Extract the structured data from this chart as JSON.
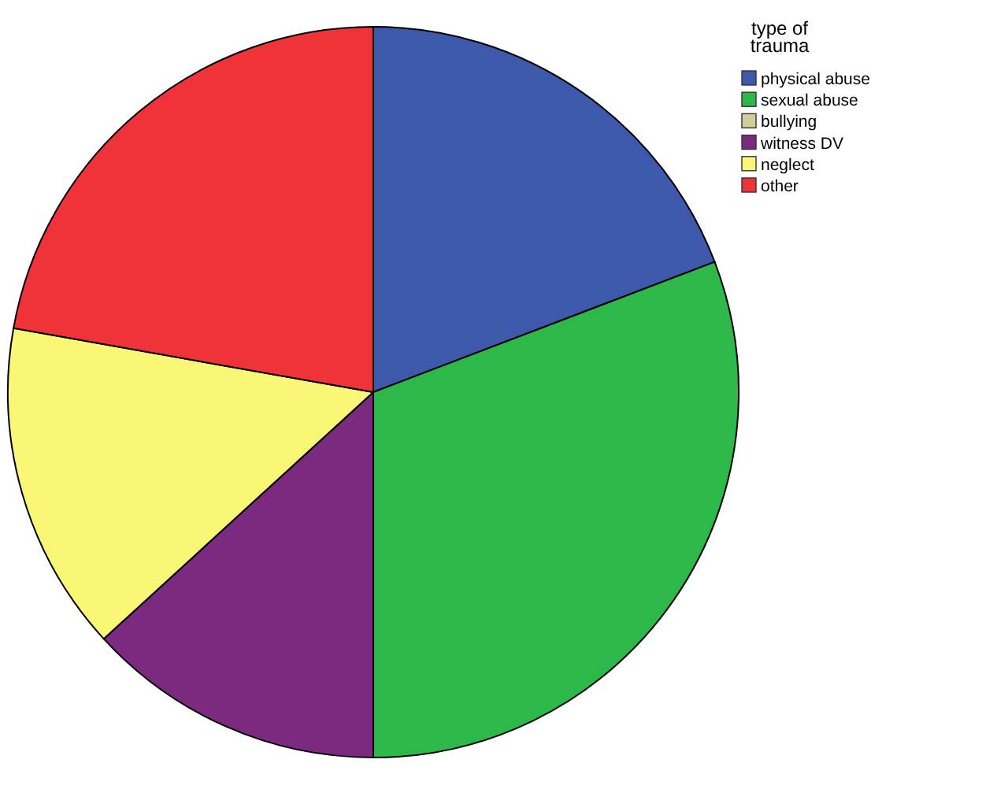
{
  "chart_data": {
    "type": "pie",
    "legend_title": "type of\ntrauma",
    "legend": "top right",
    "categories": [
      "physical abuse",
      "sexual abuse",
      "bullying",
      "witness DV",
      "neglect",
      "other"
    ],
    "values": [
      19.2,
      30.8,
      0,
      13.2,
      14.6,
      22.2
    ],
    "colors": [
      "#3e58ac",
      "#2db84a",
      "#d4cc9a",
      "#7b2a80",
      "#fbf776",
      "#ef3339"
    ]
  }
}
